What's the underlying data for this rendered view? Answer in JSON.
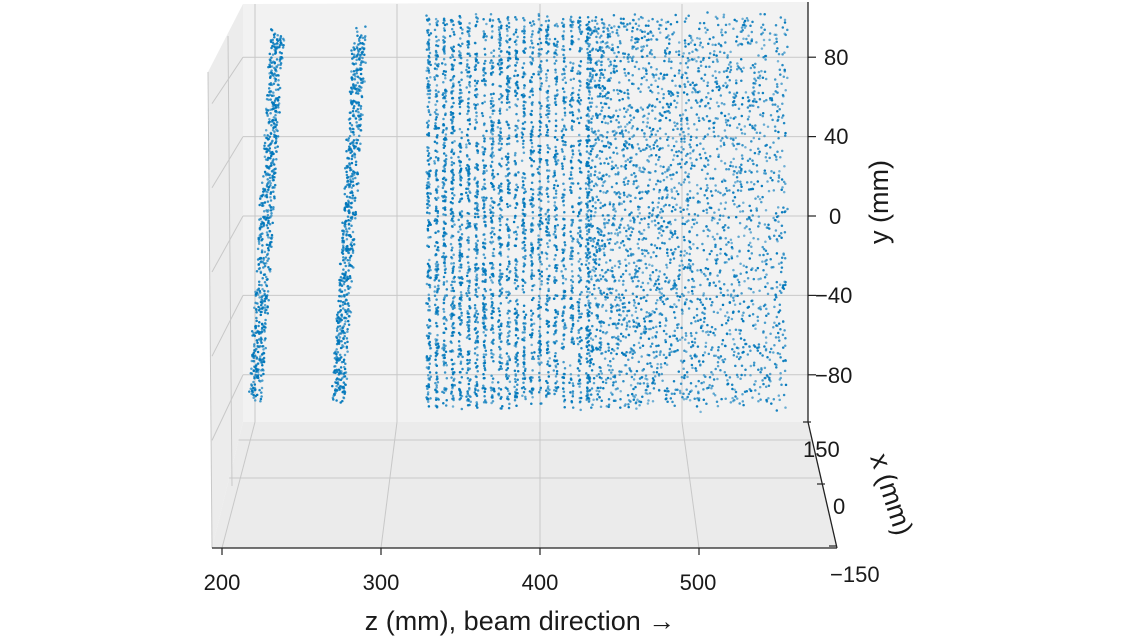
{
  "chart_data": {
    "type": "scatter",
    "projection": "3d",
    "title": "",
    "xlabel": "z (mm), beam direction  →",
    "ylabel": "y (mm)",
    "zlabel": "x (mm)",
    "x_ticks": [
      "200",
      "300",
      "400",
      "500"
    ],
    "y_ticks": [
      "80",
      "40",
      "0",
      "−40",
      "−80"
    ],
    "z_ticks": [
      "150",
      "0",
      "−150"
    ],
    "xlim": [
      200,
      550
    ],
    "ylim": [
      -100,
      100
    ],
    "zlim": [
      -150,
      150
    ],
    "grid": true,
    "colors": {
      "points": "#0077bb",
      "grid": "#c8c8c8",
      "pane": "#f2f2f2",
      "axis": "#222222"
    },
    "series": [
      {
        "point_count_approx": 9000,
        "groups": [
          {
            "z": 228,
            "y_range": [
              -95,
              95
            ],
            "x_spread": 20
          },
          {
            "z": 280,
            "y_range": [
              -95,
              95
            ],
            "x_spread": 20
          },
          {
            "z_range": [
              330,
              430
            ],
            "y_range": [
              -95,
              100
            ],
            "structure": "evenly spaced layers, about 5 mm apart"
          },
          {
            "z_range": [
              430,
              555
            ],
            "y_range": [
              -95,
              100
            ],
            "structure": "scattered, density decreasing with z"
          }
        ]
      }
    ]
  }
}
